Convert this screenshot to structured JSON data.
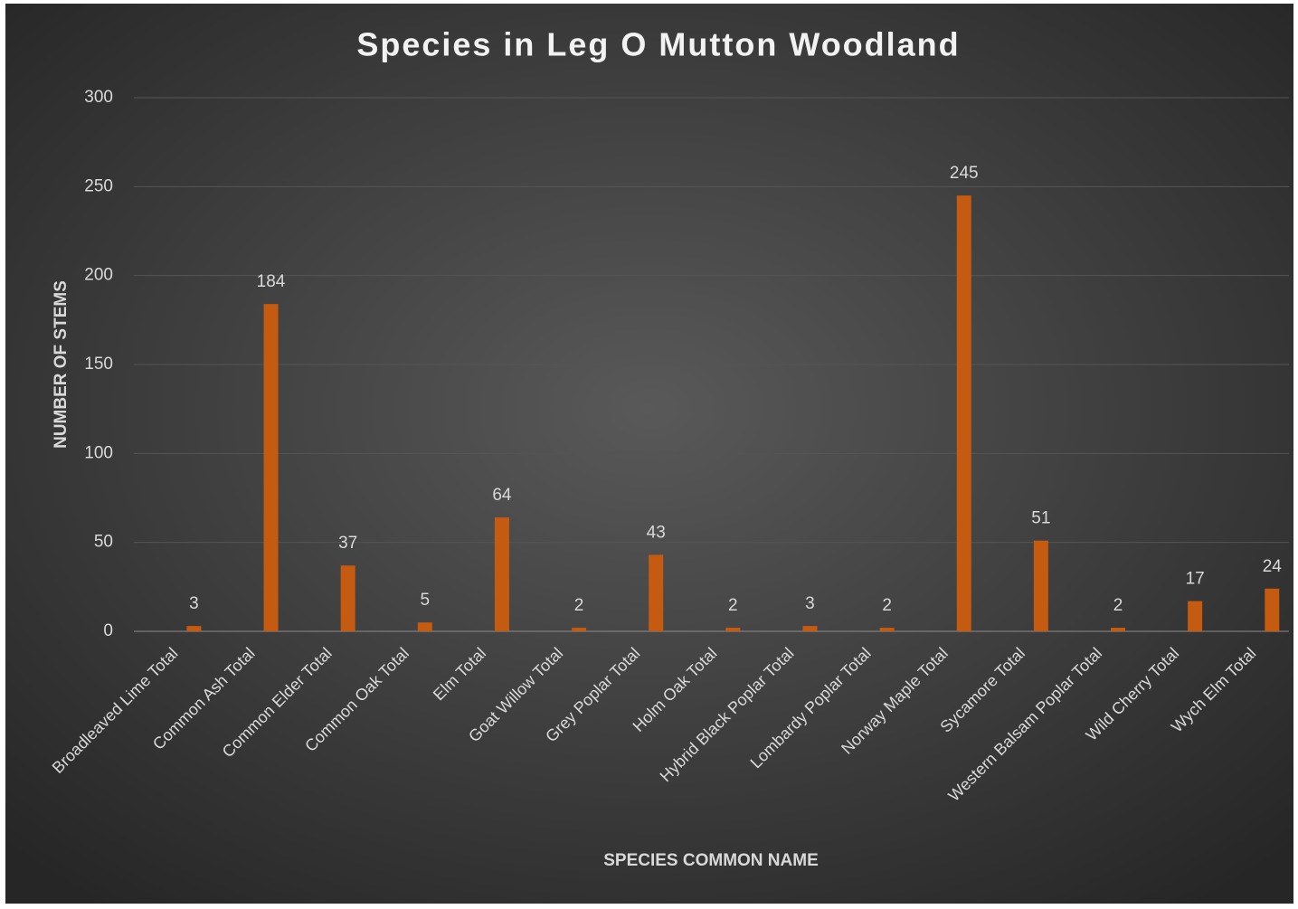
{
  "chart_data": {
    "type": "bar",
    "title": "Species in Leg O Mutton Woodland",
    "xlabel": "SPECIES COMMON NAME",
    "ylabel": "NUMBER OF STEMS",
    "categories": [
      "Broadleaved Lime Total",
      "Common Ash Total",
      "Common Elder Total",
      "Common Oak Total",
      "Elm Total",
      "Goat Willow Total",
      "Grey Poplar Total",
      "Holm Oak Total",
      "Hybrid Black Poplar Total",
      "Lombardy Poplar Total",
      "Norway Maple Total",
      "Sycamore Total",
      "Western Balsam Poplar Total",
      "Wild Cherry Total",
      "Wych Elm Total"
    ],
    "values": [
      3,
      184,
      37,
      5,
      64,
      2,
      43,
      2,
      3,
      2,
      245,
      51,
      2,
      17,
      24
    ],
    "color": "#c55a11",
    "ylim": [
      0,
      300
    ],
    "yticks": [
      0,
      50,
      100,
      150,
      200,
      250,
      300
    ],
    "grid": true
  }
}
